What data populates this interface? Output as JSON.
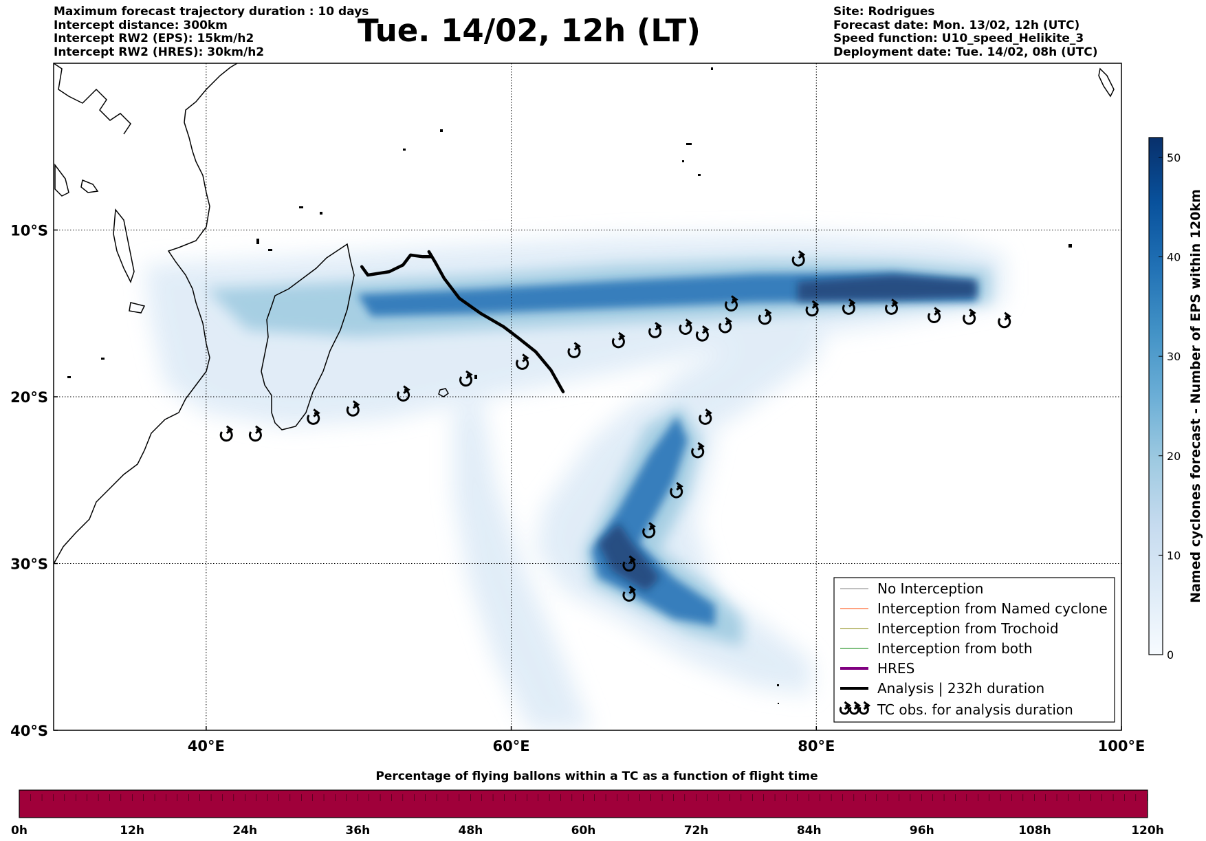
{
  "header": {
    "left_lines": [
      "Maximum forecast trajectory duration : 10 days",
      "Intercept distance: 300km",
      "Intercept RW2 (EPS):  15km/h2",
      "Intercept RW2 (HRES): 30km/h2"
    ],
    "title": "Tue. 14/02, 12h (LT)",
    "right_lines": [
      "Site: Rodrigues",
      "Forecast date: Mon. 13/02, 12h (UTC)",
      "Speed function: U10_speed_Helikite_3",
      "Deployment date: Tue. 14/02, 08h (UTC)"
    ]
  },
  "map": {
    "lon_range": [
      30,
      100
    ],
    "lat_range": [
      -40,
      0
    ],
    "lon_ticks": [
      {
        "value": 40,
        "label": "40°E"
      },
      {
        "value": 60,
        "label": "60°E"
      },
      {
        "value": 80,
        "label": "80°E"
      },
      {
        "value": 100,
        "label": "100°E"
      }
    ],
    "lat_ticks": [
      {
        "value": -10,
        "label": "10°S"
      },
      {
        "value": -20,
        "label": "20°S"
      },
      {
        "value": -30,
        "label": "30°S"
      },
      {
        "value": -40,
        "label": "40°S"
      }
    ],
    "analysis_track": [
      [
        50.2,
        -12.2
      ],
      [
        50.6,
        -12.7
      ],
      [
        52.0,
        -12.5
      ],
      [
        52.9,
        -12.1
      ],
      [
        53.4,
        -11.5
      ],
      [
        54.2,
        -11.6
      ],
      [
        54.8,
        -11.6
      ],
      [
        54.6,
        -11.3
      ],
      [
        55.0,
        -11.9
      ],
      [
        55.6,
        -12.9
      ],
      [
        56.6,
        -14.1
      ],
      [
        58.0,
        -15.0
      ],
      [
        59.5,
        -15.8
      ],
      [
        60.5,
        -16.5
      ],
      [
        61.6,
        -17.3
      ],
      [
        62.6,
        -18.4
      ],
      [
        63.4,
        -19.7
      ]
    ],
    "tc_observations": [
      [
        41.3,
        -22.3
      ],
      [
        43.2,
        -22.3
      ],
      [
        47.0,
        -21.3
      ],
      [
        49.6,
        -20.8
      ],
      [
        52.9,
        -19.9
      ],
      [
        57.0,
        -19.0
      ],
      [
        60.7,
        -18.0
      ],
      [
        64.1,
        -17.3
      ],
      [
        67.0,
        -16.7
      ],
      [
        69.4,
        -16.1
      ],
      [
        71.4,
        -15.9
      ],
      [
        72.5,
        -16.3
      ],
      [
        74.0,
        -15.8
      ],
      [
        74.4,
        -14.5
      ],
      [
        76.6,
        -15.3
      ],
      [
        79.7,
        -14.8
      ],
      [
        82.1,
        -14.7
      ],
      [
        84.9,
        -14.7
      ],
      [
        87.7,
        -15.2
      ],
      [
        90.0,
        -15.3
      ],
      [
        92.3,
        -15.5
      ],
      [
        78.8,
        -11.8
      ],
      [
        72.7,
        -21.3
      ],
      [
        72.2,
        -23.3
      ],
      [
        70.8,
        -25.7
      ],
      [
        69.0,
        -28.1
      ],
      [
        67.7,
        -30.1
      ],
      [
        67.7,
        -31.9
      ]
    ],
    "track_color": "#000000",
    "density_color_dark": "#08306b",
    "density_color_light": "#deebf7"
  },
  "legend": {
    "items": [
      {
        "label": "No Interception",
        "color": "#808080",
        "width": 1
      },
      {
        "label": "Interception from Named cyclone",
        "color": "#ff4500",
        "width": 1
      },
      {
        "label": "Interception from Trochoid",
        "color": "#808000",
        "width": 1
      },
      {
        "label": "Interception from both",
        "color": "#008000",
        "width": 1
      },
      {
        "label": "HRES",
        "color": "#800080",
        "width": 4
      },
      {
        "label": "Analysis | 232h duration",
        "color": "#000000",
        "width": 4
      }
    ],
    "tc_item": {
      "label": "TC obs. for analysis duration",
      "icon": "tropical-cyclone-icon"
    }
  },
  "colorbar": {
    "title": "Named cyclones forecast - Number of EPS within 120km",
    "ticks": [
      0,
      10,
      20,
      30,
      40,
      50
    ],
    "max": 52,
    "colors": [
      "#f7fbff",
      "#deebf7",
      "#c6dbef",
      "#9ecae1",
      "#6baed6",
      "#4292c6",
      "#2171b5",
      "#08519c",
      "#08306b"
    ]
  },
  "flight_bar": {
    "title": "Percentage of flying ballons within a TC as a function of flight time",
    "ticks": [
      "0h",
      "12h",
      "24h",
      "36h",
      "48h",
      "60h",
      "72h",
      "84h",
      "96h",
      "108h",
      "120h"
    ],
    "color": "#a0003a"
  }
}
